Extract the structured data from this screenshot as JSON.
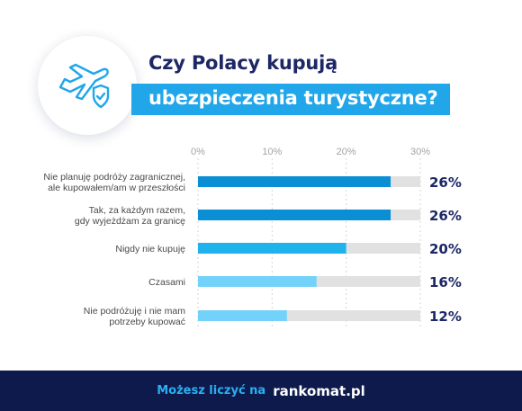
{
  "title": {
    "line1": "Czy Polacy kupują",
    "line2": "ubezpieczenia turystyczne?"
  },
  "icon": "airplane-shield-icon",
  "colors": {
    "dark_navy": "#1d2766",
    "accent_blue": "#21a6ea",
    "bar_dark": "#0b8fd4",
    "bar_mid": "#1fb3ee",
    "bar_light": "#73d2fa",
    "track_gray": "#e1e1e1",
    "footer_bg": "#0e1a4b"
  },
  "chart_data": {
    "type": "bar",
    "orientation": "horizontal",
    "title": "",
    "xlabel": "",
    "ylabel": "",
    "xlim": [
      0,
      30
    ],
    "x_ticks": [
      "0%",
      "10%",
      "20%",
      "30%"
    ],
    "grid": true,
    "categories": [
      [
        "Nie planuję podróży zagranicznej,",
        "ale kupowałem/am w przeszłości"
      ],
      [
        "Tak, za każdym razem,",
        "gdy wyjeżdżam za granicę"
      ],
      [
        "Nigdy nie kupuję"
      ],
      [
        "Czasami"
      ],
      [
        "Nie podróżuję i nie mam",
        "potrzeby kupować"
      ]
    ],
    "values": [
      26,
      26,
      20,
      16,
      12
    ],
    "value_labels": [
      "26%",
      "26%",
      "20%",
      "16%",
      "12%"
    ],
    "bar_colors": [
      "#0b8fd4",
      "#0b8fd4",
      "#1fb3ee",
      "#73d2fa",
      "#73d2fa"
    ]
  },
  "footer": {
    "text": "Możesz liczyć na",
    "brand": "rankomat.pl"
  }
}
